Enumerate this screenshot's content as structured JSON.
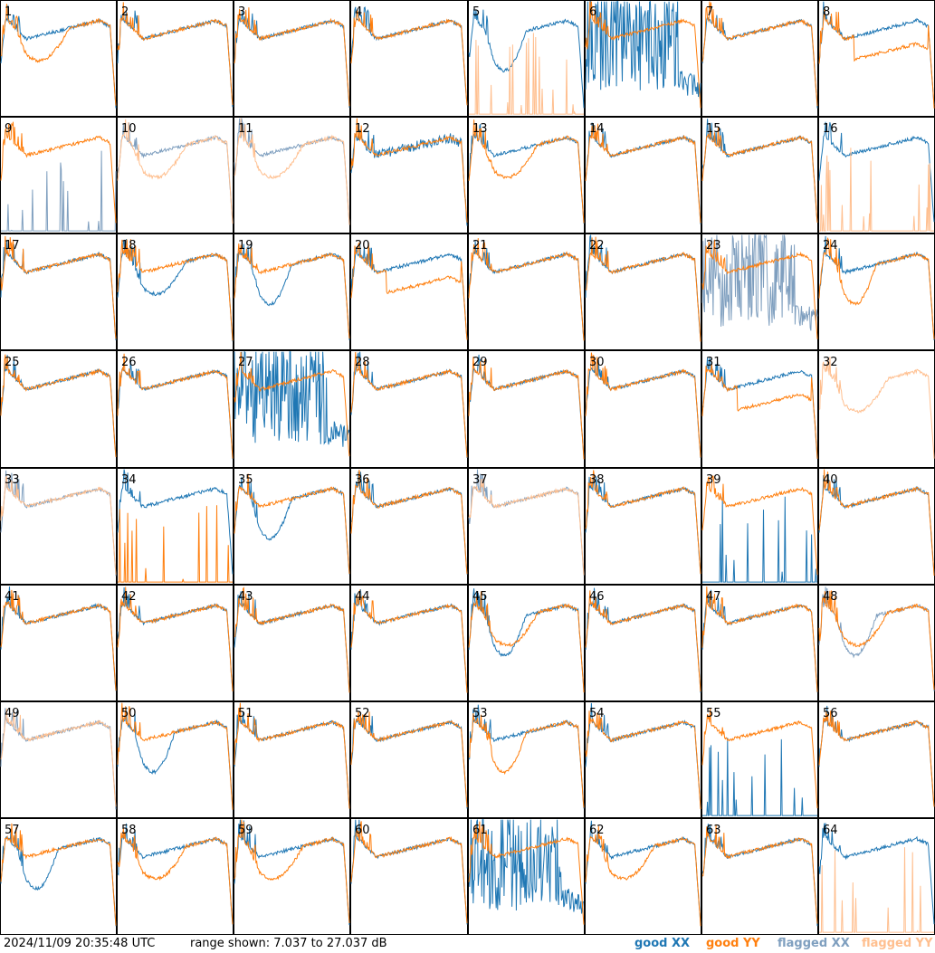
{
  "footer": {
    "timestamp": "2024/11/09 20:35:48 UTC",
    "range": "range shown: 7.037 to 27.037 dB",
    "legend": [
      {
        "key": "good_xx",
        "label": "good XX",
        "color": "#1f77b4"
      },
      {
        "key": "good_yy",
        "label": "good YY",
        "color": "#ff7f0e"
      },
      {
        "key": "flagged_xx",
        "label": "flagged XX",
        "color": "#7f9fbf"
      },
      {
        "key": "flagged_yy",
        "label": "flagged YY",
        "color": "#ffbf8f"
      }
    ]
  },
  "chart_data": {
    "type": "line",
    "grid": {
      "rows": 8,
      "cols": 8
    },
    "y_range_db": [
      7.037,
      27.037
    ],
    "panels": [
      {
        "label": "1",
        "xx": "good",
        "yy": "good",
        "xxShape": "normal",
        "yyShape": "sag"
      },
      {
        "label": "2",
        "xx": "good",
        "yy": "good",
        "xxShape": "normal",
        "yyShape": "normal"
      },
      {
        "label": "3",
        "xx": "good",
        "yy": "good",
        "xxShape": "normal",
        "yyShape": "normal"
      },
      {
        "label": "4",
        "xx": "good",
        "yy": "good",
        "xxShape": "normal",
        "yyShape": "normal"
      },
      {
        "label": "5",
        "xx": "good",
        "yy": "flagged",
        "xxShape": "dip",
        "yyShape": "low"
      },
      {
        "label": "6",
        "xx": "good",
        "yy": "good",
        "xxShape": "wild",
        "yyShape": "normal"
      },
      {
        "label": "7",
        "xx": "good",
        "yy": "good",
        "xxShape": "normal",
        "yyShape": "normal"
      },
      {
        "label": "8",
        "xx": "good",
        "yy": "good",
        "xxShape": "normal",
        "yyShape": "lower"
      },
      {
        "label": "9",
        "xx": "flagged",
        "yy": "good",
        "xxShape": "low",
        "yyShape": "normal"
      },
      {
        "label": "10",
        "xx": "flagged",
        "yy": "flagged",
        "xxShape": "normal",
        "yyShape": "sag"
      },
      {
        "label": "11",
        "xx": "flagged",
        "yy": "flagged",
        "xxShape": "normal",
        "yyShape": "sag"
      },
      {
        "label": "12",
        "xx": "good",
        "yy": "good",
        "xxShape": "noisy",
        "yyShape": "normal"
      },
      {
        "label": "13",
        "xx": "good",
        "yy": "good",
        "xxShape": "normal",
        "yyShape": "sag"
      },
      {
        "label": "14",
        "xx": "good",
        "yy": "good",
        "xxShape": "normal",
        "yyShape": "normal"
      },
      {
        "label": "15",
        "xx": "good",
        "yy": "good",
        "xxShape": "normal",
        "yyShape": "normal"
      },
      {
        "label": "16",
        "xx": "good",
        "yy": "flagged",
        "xxShape": "normal",
        "yyShape": "low"
      },
      {
        "label": "17",
        "xx": "good",
        "yy": "good",
        "xxShape": "normal",
        "yyShape": "normal"
      },
      {
        "label": "18",
        "xx": "good",
        "yy": "good",
        "xxShape": "sag",
        "yyShape": "normal"
      },
      {
        "label": "19",
        "xx": "good",
        "yy": "good",
        "xxShape": "dip",
        "yyShape": "normal"
      },
      {
        "label": "20",
        "xx": "good",
        "yy": "good",
        "xxShape": "normal",
        "yyShape": "lower"
      },
      {
        "label": "21",
        "xx": "good",
        "yy": "good",
        "xxShape": "normal",
        "yyShape": "normal"
      },
      {
        "label": "22",
        "xx": "good",
        "yy": "good",
        "xxShape": "normal",
        "yyShape": "normal"
      },
      {
        "label": "23",
        "xx": "flagged",
        "yy": "good",
        "xxShape": "wild",
        "yyShape": "normal"
      },
      {
        "label": "24",
        "xx": "good",
        "yy": "good",
        "xxShape": "normal",
        "yyShape": "dip"
      },
      {
        "label": "25",
        "xx": "good",
        "yy": "good",
        "xxShape": "normal",
        "yyShape": "normal"
      },
      {
        "label": "26",
        "xx": "good",
        "yy": "good",
        "xxShape": "normal",
        "yyShape": "normal"
      },
      {
        "label": "27",
        "xx": "good",
        "yy": "good",
        "xxShape": "wild",
        "yyShape": "normal"
      },
      {
        "label": "28",
        "xx": "good",
        "yy": "good",
        "xxShape": "normal",
        "yyShape": "normal"
      },
      {
        "label": "29",
        "xx": "good",
        "yy": "good",
        "xxShape": "normal",
        "yyShape": "normal"
      },
      {
        "label": "30",
        "xx": "good",
        "yy": "good",
        "xxShape": "normal",
        "yyShape": "normal"
      },
      {
        "label": "31",
        "xx": "good",
        "yy": "good",
        "xxShape": "normal",
        "yyShape": "lower"
      },
      {
        "label": "32",
        "xx": "flagged",
        "yy": "flagged",
        "xxShape": "none",
        "yyShape": "sag"
      },
      {
        "label": "33",
        "xx": "flagged",
        "yy": "flagged",
        "xxShape": "normal",
        "yyShape": "normal"
      },
      {
        "label": "34",
        "xx": "good",
        "yy": "good",
        "xxShape": "normal",
        "yyShape": "low"
      },
      {
        "label": "35",
        "xx": "good",
        "yy": "good",
        "xxShape": "dip",
        "yyShape": "normal"
      },
      {
        "label": "36",
        "xx": "good",
        "yy": "good",
        "xxShape": "normal",
        "yyShape": "normal"
      },
      {
        "label": "37",
        "xx": "flagged",
        "yy": "flagged",
        "xxShape": "normal",
        "yyShape": "normal"
      },
      {
        "label": "38",
        "xx": "good",
        "yy": "good",
        "xxShape": "normal",
        "yyShape": "normal"
      },
      {
        "label": "39",
        "xx": "good",
        "yy": "good",
        "xxShape": "low",
        "yyShape": "normal"
      },
      {
        "label": "40",
        "xx": "good",
        "yy": "good",
        "xxShape": "normal",
        "yyShape": "normal"
      },
      {
        "label": "41",
        "xx": "good",
        "yy": "good",
        "xxShape": "normal",
        "yyShape": "normal"
      },
      {
        "label": "42",
        "xx": "good",
        "yy": "good",
        "xxShape": "normal",
        "yyShape": "normal"
      },
      {
        "label": "43",
        "xx": "good",
        "yy": "good",
        "xxShape": "normal",
        "yyShape": "normal"
      },
      {
        "label": "44",
        "xx": "good",
        "yy": "good",
        "xxShape": "normal",
        "yyShape": "normal"
      },
      {
        "label": "45",
        "xx": "good",
        "yy": "good",
        "xxShape": "dip",
        "yyShape": "sag"
      },
      {
        "label": "46",
        "xx": "good",
        "yy": "good",
        "xxShape": "normal",
        "yyShape": "normal"
      },
      {
        "label": "47",
        "xx": "good",
        "yy": "good",
        "xxShape": "normal",
        "yyShape": "normal"
      },
      {
        "label": "48",
        "xx": "flagged",
        "yy": "good",
        "xxShape": "dip",
        "yyShape": "sag"
      },
      {
        "label": "49",
        "xx": "flagged",
        "yy": "flagged",
        "xxShape": "normal",
        "yyShape": "normal"
      },
      {
        "label": "50",
        "xx": "good",
        "yy": "good",
        "xxShape": "dip",
        "yyShape": "normal"
      },
      {
        "label": "51",
        "xx": "good",
        "yy": "good",
        "xxShape": "normal",
        "yyShape": "normal"
      },
      {
        "label": "52",
        "xx": "good",
        "yy": "good",
        "xxShape": "normal",
        "yyShape": "normal"
      },
      {
        "label": "53",
        "xx": "good",
        "yy": "good",
        "xxShape": "normal",
        "yyShape": "dip"
      },
      {
        "label": "54",
        "xx": "good",
        "yy": "good",
        "xxShape": "normal",
        "yyShape": "normal"
      },
      {
        "label": "55",
        "xx": "good",
        "yy": "good",
        "xxShape": "low",
        "yyShape": "normal"
      },
      {
        "label": "56",
        "xx": "good",
        "yy": "good",
        "xxShape": "normal",
        "yyShape": "normal"
      },
      {
        "label": "57",
        "xx": "good",
        "yy": "good",
        "xxShape": "dip",
        "yyShape": "normal"
      },
      {
        "label": "58",
        "xx": "good",
        "yy": "good",
        "xxShape": "normal",
        "yyShape": "sag"
      },
      {
        "label": "59",
        "xx": "good",
        "yy": "good",
        "xxShape": "normal",
        "yyShape": "sag"
      },
      {
        "label": "60",
        "xx": "good",
        "yy": "good",
        "xxShape": "normal",
        "yyShape": "normal"
      },
      {
        "label": "61",
        "xx": "good",
        "yy": "good",
        "xxShape": "wild",
        "yyShape": "normal"
      },
      {
        "label": "62",
        "xx": "good",
        "yy": "good",
        "xxShape": "normal",
        "yyShape": "sag"
      },
      {
        "label": "63",
        "xx": "good",
        "yy": "good",
        "xxShape": "normal",
        "yyShape": "normal"
      },
      {
        "label": "64",
        "xx": "good",
        "yy": "flagged",
        "xxShape": "normal",
        "yyShape": "low"
      }
    ]
  }
}
